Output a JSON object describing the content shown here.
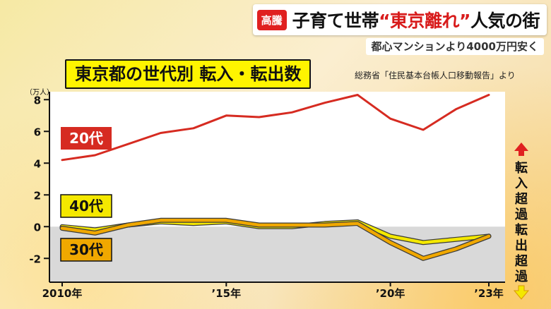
{
  "header": {
    "program_badge": "高騰",
    "headline_prefix": "子育て世帯",
    "headline_highlight": "“東京離れ”",
    "headline_suffix": "人気の街",
    "sub_headline": "都心マンションより4000万円安く"
  },
  "source_note": "総務省「住民基本台帳人口移動報告」より",
  "side_labels": {
    "in_excess": "転入超過",
    "out_excess": "転出超過"
  },
  "colors": {
    "red": "#d62b21",
    "yellow": "#f4e800",
    "orange": "#f0a800",
    "outline": "#3a3a3a"
  },
  "chart_data": {
    "type": "line",
    "title": "東京都の世代別 転入・転出数",
    "ylabel": "（万人）",
    "ylim": [
      -3.5,
      8.5
    ],
    "yticks": [
      8,
      6,
      4,
      2,
      0,
      -2
    ],
    "ytick_labels": [
      "8",
      "6",
      "4",
      "2",
      "0",
      "-2"
    ],
    "x": [
      2010,
      2011,
      2012,
      2013,
      2014,
      2015,
      2016,
      2017,
      2018,
      2019,
      2020,
      2021,
      2022,
      2023
    ],
    "xtick_positions": [
      2010,
      2015,
      2020,
      2023
    ],
    "xtick_labels": [
      "2010年",
      "’15年",
      "’20年",
      "’23年"
    ],
    "series": [
      {
        "name": "20代",
        "color": "#d62b21",
        "values": [
          4.2,
          4.5,
          5.2,
          5.9,
          6.2,
          7.0,
          6.9,
          7.2,
          7.8,
          8.3,
          6.8,
          6.1,
          7.4,
          8.3
        ]
      },
      {
        "name": "40代",
        "color": "#f4e800",
        "values": [
          0.0,
          -0.2,
          0.1,
          0.3,
          0.2,
          0.3,
          0.0,
          0.0,
          0.2,
          0.3,
          -0.6,
          -1.0,
          -0.8,
          -0.6
        ]
      },
      {
        "name": "30代",
        "color": "#f0a800",
        "values": [
          -0.1,
          -0.4,
          0.1,
          0.4,
          0.4,
          0.4,
          0.1,
          0.1,
          0.1,
          0.2,
          -1.0,
          -2.0,
          -1.4,
          -0.6
        ]
      }
    ]
  }
}
